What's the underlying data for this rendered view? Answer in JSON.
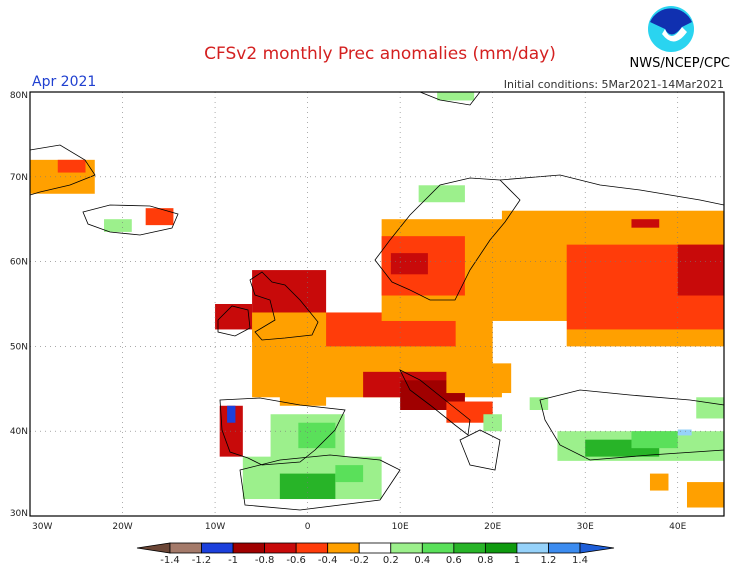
{
  "header": {
    "title": "CFSv2 monthly Prec anomalies (mm/day)",
    "organization": "NWS/NCEP/CPC",
    "logo_text": "NOAA",
    "month": "Apr 2021",
    "initial_conditions": "Initial conditions: 5Mar2021-14Mar2021"
  },
  "map": {
    "projection": "cylindrical equidistant",
    "lon_range": [
      -30,
      45
    ],
    "lat_range": [
      30,
      80
    ],
    "grid": "dotted",
    "lon_ticks": [
      "30W",
      "20W",
      "10W",
      "0",
      "10E",
      "20E",
      "30E",
      "40E"
    ],
    "lat_ticks": [
      "30N",
      "40N",
      "50N",
      "60N",
      "70N",
      "80N"
    ],
    "anomaly_patches": [
      {
        "lon": [
          -30,
          -23
        ],
        "lat": [
          68,
          72
        ],
        "value": -0.3
      },
      {
        "lon": [
          -27,
          -24
        ],
        "lat": [
          70.5,
          72
        ],
        "value": -0.5
      },
      {
        "lon": [
          -22,
          -19
        ],
        "lat": [
          63.5,
          65
        ],
        "value": 0.3
      },
      {
        "lon": [
          -17.5,
          -14.5
        ],
        "lat": [
          64.3,
          66.3
        ],
        "value": -0.5
      },
      {
        "lon": [
          -10,
          -6
        ],
        "lat": [
          52,
          55
        ],
        "value": -0.7
      },
      {
        "lon": [
          -6,
          2
        ],
        "lat": [
          50.5,
          59
        ],
        "value": -0.7
      },
      {
        "lon": [
          -6,
          21
        ],
        "lat": [
          44,
          54
        ],
        "value": -0.3
      },
      {
        "lon": [
          2,
          16
        ],
        "lat": [
          50,
          54
        ],
        "value": -0.5
      },
      {
        "lon": [
          6,
          17
        ],
        "lat": [
          44,
          47
        ],
        "value": -0.7
      },
      {
        "lon": [
          10,
          17
        ],
        "lat": [
          42.5,
          46
        ],
        "value": -0.9
      },
      {
        "lon": [
          15,
          20
        ],
        "lat": [
          41,
          43.5
        ],
        "value": -0.5
      },
      {
        "lon": [
          -3,
          2
        ],
        "lat": [
          43,
          46
        ],
        "value": -0.3
      },
      {
        "lon": [
          8,
          22
        ],
        "lat": [
          53,
          65
        ],
        "value": -0.3
      },
      {
        "lon": [
          8,
          17
        ],
        "lat": [
          56,
          63
        ],
        "value": -0.5
      },
      {
        "lon": [
          9,
          13
        ],
        "lat": [
          58.5,
          61
        ],
        "value": -0.7
      },
      {
        "lon": [
          21,
          45
        ],
        "lat": [
          50,
          66
        ],
        "value": -0.3
      },
      {
        "lon": [
          28,
          45
        ],
        "lat": [
          52,
          62
        ],
        "value": -0.5
      },
      {
        "lon": [
          40,
          45
        ],
        "lat": [
          56,
          62
        ],
        "value": -0.7
      },
      {
        "lon": [
          35,
          38
        ],
        "lat": [
          64,
          65
        ],
        "value": -0.7
      },
      {
        "lon": [
          20,
          28
        ],
        "lat": [
          45,
          53
        ],
        "value": 0.0
      },
      {
        "lon": [
          28,
          33
        ],
        "lat": [
          42,
          48
        ],
        "value": 0.0
      },
      {
        "lon": [
          15,
          22
        ],
        "lat": [
          44.5,
          48
        ],
        "value": -0.3
      },
      {
        "lon": [
          -9.5,
          -7
        ],
        "lat": [
          37,
          43
        ],
        "value": -0.7
      },
      {
        "lon": [
          -8.7,
          -7.8
        ],
        "lat": [
          41,
          43
        ],
        "value": -1.1
      },
      {
        "lon": [
          -4,
          4
        ],
        "lat": [
          36,
          42
        ],
        "value": 0.3
      },
      {
        "lon": [
          -1,
          3
        ],
        "lat": [
          38,
          41
        ],
        "value": 0.5
      },
      {
        "lon": [
          -7,
          8
        ],
        "lat": [
          32,
          37
        ],
        "value": 0.3
      },
      {
        "lon": [
          -3,
          3
        ],
        "lat": [
          32,
          35
        ],
        "value": 0.7
      },
      {
        "lon": [
          3,
          6
        ],
        "lat": [
          34,
          36
        ],
        "value": 0.5
      },
      {
        "lon": [
          27,
          45
        ],
        "lat": [
          36.5,
          40
        ],
        "value": 0.3
      },
      {
        "lon": [
          30,
          38
        ],
        "lat": [
          37,
          39
        ],
        "value": 0.7
      },
      {
        "lon": [
          35,
          40
        ],
        "lat": [
          38,
          40
        ],
        "value": 0.5
      },
      {
        "lon": [
          40,
          41.5
        ],
        "lat": [
          39.5,
          40.2
        ],
        "value": 1.1
      },
      {
        "lon": [
          42,
          45
        ],
        "lat": [
          41.5,
          44
        ],
        "value": 0.3
      },
      {
        "lon": [
          14,
          18
        ],
        "lat": [
          79,
          80
        ],
        "value": 0.3
      },
      {
        "lon": [
          12,
          17
        ],
        "lat": [
          67,
          69
        ],
        "value": 0.3
      },
      {
        "lon": [
          19,
          21
        ],
        "lat": [
          40,
          42
        ],
        "value": 0.3
      },
      {
        "lon": [
          24,
          26
        ],
        "lat": [
          42.5,
          44
        ],
        "value": 0.3
      },
      {
        "lon": [
          41,
          45
        ],
        "lat": [
          31,
          34
        ],
        "value": -0.3
      },
      {
        "lon": [
          37,
          39
        ],
        "lat": [
          33,
          35
        ],
        "value": -0.3
      }
    ]
  },
  "colorbar": {
    "labels": [
      "-1.4",
      "-1.2",
      "-1",
      "-0.8",
      "-0.6",
      "-0.4",
      "-0.2",
      "0.2",
      "0.4",
      "0.6",
      "0.8",
      "1",
      "1.2",
      "1.4"
    ],
    "bounds": [
      -1.4,
      -1.2,
      -1,
      -0.8,
      -0.6,
      -0.4,
      -0.2,
      0.2,
      0.4,
      0.6,
      0.8,
      1,
      1.2,
      1.4
    ],
    "colors": [
      "#6b4636",
      "#a47a6a",
      "#1c40dc",
      "#a00000",
      "#c80a0a",
      "#ff3c0a",
      "#ffa000",
      "#ffffff",
      "#9cf08c",
      "#5ae05a",
      "#28b428",
      "#0f9a0f",
      "#96d2fa",
      "#3c8cf0",
      "#1e5ed8"
    ]
  }
}
